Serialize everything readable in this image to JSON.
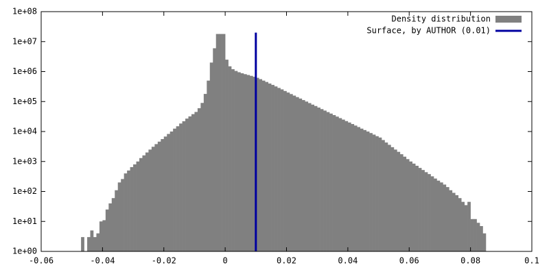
{
  "chart_data": {
    "type": "histogram",
    "xlim": [
      -0.06,
      0.1
    ],
    "xticks": [
      -0.06,
      -0.04,
      -0.02,
      0,
      0.02,
      0.04,
      0.06,
      0.08,
      0.1
    ],
    "ylim": [
      1,
      100000000
    ],
    "log_y": true,
    "yticks": [
      {
        "value": 1,
        "label": "1e+00"
      },
      {
        "value": 10,
        "label": "1e+01"
      },
      {
        "value": 100,
        "label": "1e+02"
      },
      {
        "value": 1000,
        "label": "1e+03"
      },
      {
        "value": 10000,
        "label": "1e+04"
      },
      {
        "value": 100000,
        "label": "1e+05"
      },
      {
        "value": 1000000,
        "label": "1e+06"
      },
      {
        "value": 10000000,
        "label": "1e+07"
      },
      {
        "value": 100000000,
        "label": "1e+08"
      }
    ],
    "legend": "top-right",
    "bins": [
      -0.047,
      -0.046,
      -0.045,
      -0.044,
      -0.043,
      -0.042,
      -0.041,
      -0.04,
      -0.039,
      -0.038,
      -0.037,
      -0.036,
      -0.035,
      -0.034,
      -0.033,
      -0.032,
      -0.031,
      -0.03,
      -0.029,
      -0.028,
      -0.027,
      -0.026,
      -0.025,
      -0.024,
      -0.023,
      -0.022,
      -0.021,
      -0.02,
      -0.019,
      -0.018,
      -0.017,
      -0.016,
      -0.015,
      -0.014,
      -0.013,
      -0.012,
      -0.011,
      -0.01,
      -0.009,
      -0.008,
      -0.007,
      -0.006,
      -0.005,
      -0.004,
      -0.003,
      -0.002,
      -0.001,
      0,
      0.001,
      0.002,
      0.003,
      0.004,
      0.005,
      0.006,
      0.007,
      0.008,
      0.009,
      0.01,
      0.011,
      0.012,
      0.013,
      0.014,
      0.015,
      0.016,
      0.017,
      0.018,
      0.019,
      0.02,
      0.021,
      0.022,
      0.023,
      0.024,
      0.025,
      0.026,
      0.027,
      0.028,
      0.029,
      0.03,
      0.031,
      0.032,
      0.033,
      0.034,
      0.035,
      0.036,
      0.037,
      0.038,
      0.039,
      0.04,
      0.041,
      0.042,
      0.043,
      0.044,
      0.045,
      0.046,
      0.047,
      0.048,
      0.049,
      0.05,
      0.051,
      0.052,
      0.053,
      0.054,
      0.055,
      0.056,
      0.057,
      0.058,
      0.059,
      0.06,
      0.061,
      0.062,
      0.063,
      0.064,
      0.065,
      0.066,
      0.067,
      0.068,
      0.069,
      0.07,
      0.071,
      0.072,
      0.073,
      0.074,
      0.075,
      0.076,
      0.077,
      0.078,
      0.079,
      0.08,
      0.081,
      0.082,
      0.083,
      0.084,
      0.085
    ],
    "series": [
      {
        "name": "Density distribution",
        "type": "histogram",
        "color": "#808080",
        "values": [
          3,
          0,
          3,
          5,
          3,
          4,
          10,
          11,
          25,
          40,
          60,
          110,
          200,
          260,
          400,
          500,
          650,
          800,
          1000,
          1300,
          1600,
          2000,
          2500,
          3100,
          3800,
          4600,
          5600,
          6800,
          8300,
          10000,
          12500,
          15000,
          18500,
          22000,
          27000,
          32000,
          38000,
          45000,
          60000,
          90000,
          180000,
          500000,
          2000000,
          6000000,
          18000000,
          18000000,
          18000000,
          2500000,
          1500000,
          1200000,
          1050000,
          950000,
          880000,
          820000,
          770000,
          720000,
          670000,
          620000,
          560000,
          500000,
          450000,
          400000,
          360000,
          320000,
          285000,
          255000,
          225000,
          200000,
          178000,
          158000,
          141000,
          126000,
          112000,
          100000,
          89000,
          79000,
          71000,
          63000,
          56000,
          50000,
          44500,
          39700,
          35400,
          31500,
          28000,
          25000,
          22300,
          20000,
          17800,
          15800,
          14100,
          12500,
          11200,
          10000,
          8900,
          7900,
          7000,
          6300,
          5200,
          4300,
          3600,
          3000,
          2500,
          2100,
          1750,
          1450,
          1200,
          1000,
          850,
          720,
          610,
          520,
          440,
          380,
          320,
          270,
          230,
          200,
          170,
          140,
          110,
          90,
          75,
          60,
          45,
          35,
          45,
          12,
          12,
          9,
          7,
          4
        ]
      },
      {
        "name": "Surface, by AUTHOR (0.01)",
        "type": "line",
        "color": "#0000a0",
        "x": [
          0.01,
          0.01
        ],
        "values": [
          1,
          20000000
        ]
      }
    ]
  }
}
